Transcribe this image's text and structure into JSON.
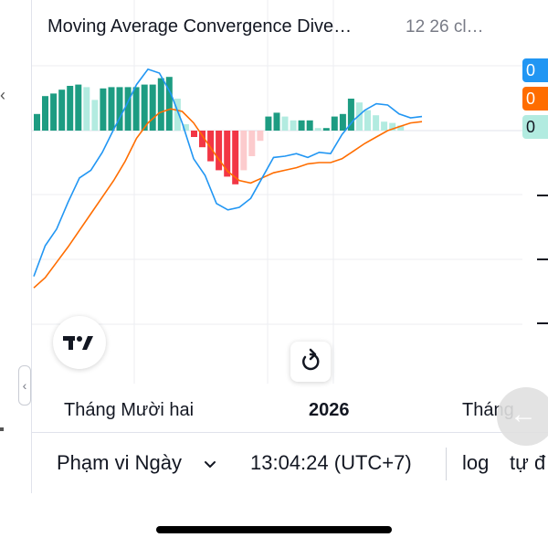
{
  "header": {
    "title": "Moving Average Convergence Dive…",
    "params": "12 26 cl…"
  },
  "value_badges": [
    "0",
    "0",
    "0"
  ],
  "colors": {
    "macd_line": "#2196f3",
    "signal_line": "#ff6d00",
    "hist_pos_strong": "#1d9c82",
    "hist_pos_weak": "#b2ebe0",
    "hist_neg_strong": "#f23645",
    "hist_neg_weak": "#fccbcd"
  },
  "x_axis": {
    "ticks": [
      "Tháng Mười hai",
      "2026",
      "Tháng"
    ]
  },
  "toolbar": {
    "date_range_label": "Phạm vi Ngày",
    "clock": "13:04:24 (UTC+7)",
    "log_label": "log",
    "auto_label": "tự đ"
  },
  "icons": {
    "logo": "tradingview-logo-icon",
    "reset": "reset-rotate-icon",
    "collapse": "chevron-left-icon",
    "back": "arrow-left-icon",
    "date_range_chevron": "chevron-down-icon"
  },
  "chart_data": {
    "type": "line",
    "title": "Moving Average Convergence Dive…",
    "grid": true,
    "histogram": [
      1.3,
      2.7,
      2.9,
      3.2,
      3.5,
      3.6,
      3.4,
      2.4,
      3.3,
      3.4,
      3.4,
      3.4,
      3.4,
      3.6,
      3.6,
      4.1,
      4.2,
      2.5,
      0.5,
      -0.5,
      -1.3,
      -2.4,
      -3.1,
      -3.6,
      -4.2,
      -3.1,
      -2.0,
      -0.8,
      1.1,
      1.4,
      1.1,
      0.8,
      0.8,
      0.8,
      0.2,
      0.2,
      1.1,
      1.3,
      2.5,
      2.2,
      1.6,
      1.2,
      0.7,
      0.6,
      0.4
    ],
    "series": [
      {
        "values": [
          -11.4,
          -9.0,
          -7.7,
          -5.6,
          -3.7,
          -3.1,
          -1.7,
          0.1,
          1.8,
          3.6,
          4.8,
          4.5,
          2.9,
          0.6,
          -2.2,
          -3.5,
          -5.7,
          -6.2,
          -6.0,
          -5.3,
          -3.7,
          -2.1,
          -2.0,
          -1.8,
          -2.1,
          -1.7,
          -1.8,
          -0.3,
          0.8,
          1.6,
          2.1,
          2.0,
          1.3,
          1.0,
          1.1
        ]
      },
      {
        "values": [
          -12.3,
          -11.5,
          -10.3,
          -9.1,
          -7.8,
          -6.5,
          -5.2,
          -3.9,
          -2.4,
          -0.6,
          0.6,
          1.4,
          1.7,
          1.5,
          0.6,
          -0.7,
          -2.0,
          -3.2,
          -3.9,
          -4.1,
          -3.7,
          -3.3,
          -3.1,
          -2.9,
          -2.6,
          -2.5,
          -2.5,
          -2.2,
          -1.6,
          -1.0,
          -0.5,
          -0.0,
          0.3,
          0.6,
          0.7
        ]
      }
    ],
    "xlabel": "",
    "ylabel": ""
  }
}
